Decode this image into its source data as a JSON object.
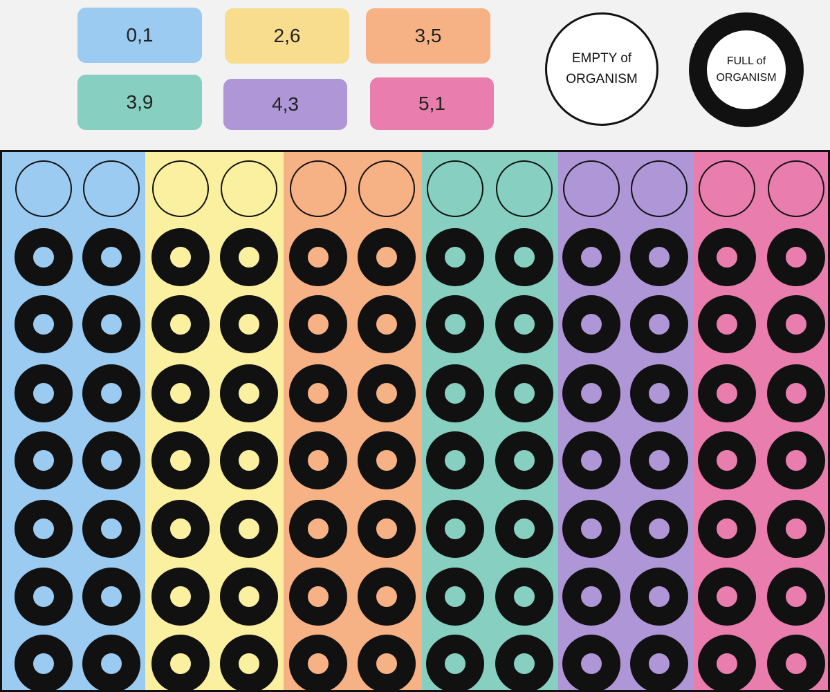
{
  "legend": {
    "items": [
      {
        "label": "0,1",
        "color": "#9bcbf0"
      },
      {
        "label": "2,6",
        "color": "#f7dd8d"
      },
      {
        "label": "3,5",
        "color": "#f6b184"
      },
      {
        "label": "3,9",
        "color": "#86cfc1"
      },
      {
        "label": "4,3",
        "color": "#ae96d7"
      },
      {
        "label": "5,1",
        "color": "#e97eae"
      }
    ]
  },
  "key": {
    "empty": {
      "line1": "EMPTY of",
      "line2": "ORGANISM"
    },
    "full": {
      "line1": "FULL of",
      "line2": "ORGANISM"
    }
  },
  "plate": {
    "strip_colors": [
      "#9bcbf0",
      "#faf0a0",
      "#f6b184",
      "#86cfc1",
      "#ae96d7",
      "#e97eae"
    ],
    "rows": [
      {
        "state": "empty"
      },
      {
        "state": "full"
      },
      {
        "state": "full"
      },
      {
        "state": "full"
      },
      {
        "state": "full"
      },
      {
        "state": "full"
      },
      {
        "state": "full"
      },
      {
        "state": "full"
      }
    ]
  }
}
